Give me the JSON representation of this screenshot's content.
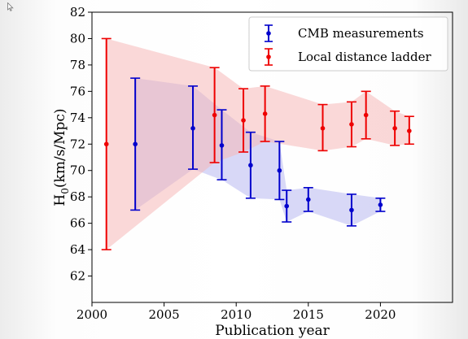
{
  "chart_data": {
    "type": "scatter",
    "xlabel": "Publication year",
    "ylabel": "H",
    "ylabel_sub": "0",
    "ylabel_unit": "(km/s/Mpc)",
    "xlim": [
      2000,
      2025
    ],
    "ylim": [
      60,
      82
    ],
    "xticks": [
      "2000",
      "2005",
      "2010",
      "2015",
      "2020"
    ],
    "xtick_values": [
      2000,
      2005,
      2010,
      2015,
      2020
    ],
    "yticks": [
      "62",
      "64",
      "66",
      "68",
      "70",
      "72",
      "74",
      "76",
      "78",
      "80",
      "82"
    ],
    "ytick_values": [
      62,
      64,
      66,
      68,
      70,
      72,
      74,
      76,
      78,
      80,
      82
    ],
    "legend_position": "top-right",
    "grid": false,
    "series": [
      {
        "name": "CMB measurements",
        "color": "#0000cc",
        "band_color": "#b8b8f0",
        "points": [
          {
            "x": 2003,
            "y": 72.0,
            "lo": 67.0,
            "hi": 77.0
          },
          {
            "x": 2007,
            "y": 73.2,
            "lo": 70.1,
            "hi": 76.4
          },
          {
            "x": 2009,
            "y": 71.9,
            "lo": 69.3,
            "hi": 74.6
          },
          {
            "x": 2011,
            "y": 70.4,
            "lo": 67.9,
            "hi": 72.9
          },
          {
            "x": 2013,
            "y": 70.0,
            "lo": 67.8,
            "hi": 72.2
          },
          {
            "x": 2013.5,
            "y": 67.3,
            "lo": 66.1,
            "hi": 68.5
          },
          {
            "x": 2015,
            "y": 67.8,
            "lo": 66.9,
            "hi": 68.7
          },
          {
            "x": 2018,
            "y": 67.0,
            "lo": 65.8,
            "hi": 68.2
          },
          {
            "x": 2020,
            "y": 67.4,
            "lo": 66.9,
            "hi": 67.9
          }
        ]
      },
      {
        "name": "Local distance ladder",
        "color": "#ee0000",
        "band_color": "#f6b8b8",
        "points": [
          {
            "x": 2001,
            "y": 72.0,
            "lo": 64.0,
            "hi": 80.0
          },
          {
            "x": 2008.5,
            "y": 74.2,
            "lo": 70.6,
            "hi": 77.8
          },
          {
            "x": 2010.5,
            "y": 73.8,
            "lo": 71.4,
            "hi": 76.2
          },
          {
            "x": 2012,
            "y": 74.3,
            "lo": 72.2,
            "hi": 76.4
          },
          {
            "x": 2016,
            "y": 73.2,
            "lo": 71.5,
            "hi": 75.0
          },
          {
            "x": 2018,
            "y": 73.5,
            "lo": 71.8,
            "hi": 75.2
          },
          {
            "x": 2019,
            "y": 74.2,
            "lo": 72.4,
            "hi": 76.0
          },
          {
            "x": 2021,
            "y": 73.2,
            "lo": 71.9,
            "hi": 74.5
          },
          {
            "x": 2022,
            "y": 73.0,
            "lo": 72.0,
            "hi": 74.1
          }
        ]
      }
    ]
  }
}
